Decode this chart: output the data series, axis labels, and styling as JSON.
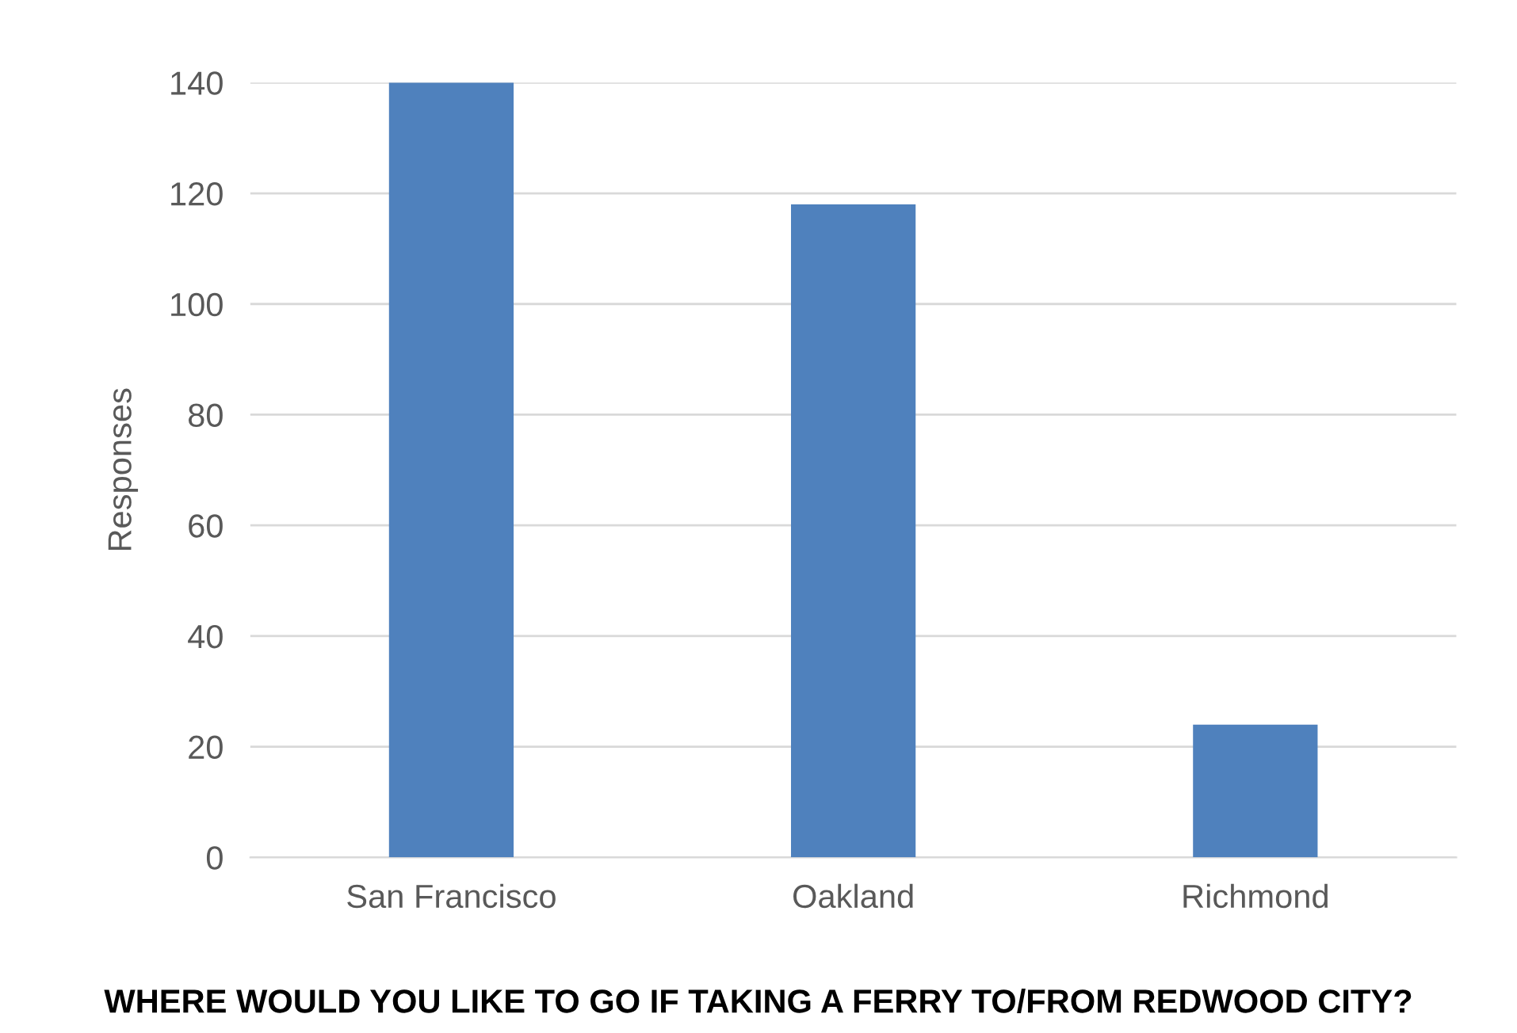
{
  "chart_data": {
    "type": "bar",
    "title": "WHERE WOULD YOU LIKE TO GO IF TAKING A FERRY TO/FROM REDWOOD CITY?",
    "ylabel": "Responses",
    "categories": [
      "San Francisco",
      "Oakland",
      "Richmond"
    ],
    "values": [
      140,
      118,
      24
    ],
    "color": "#4f81bd",
    "ylim": [
      0,
      140
    ],
    "yticks": [
      0,
      20,
      40,
      60,
      80,
      100,
      120,
      140
    ],
    "grid": "y"
  }
}
